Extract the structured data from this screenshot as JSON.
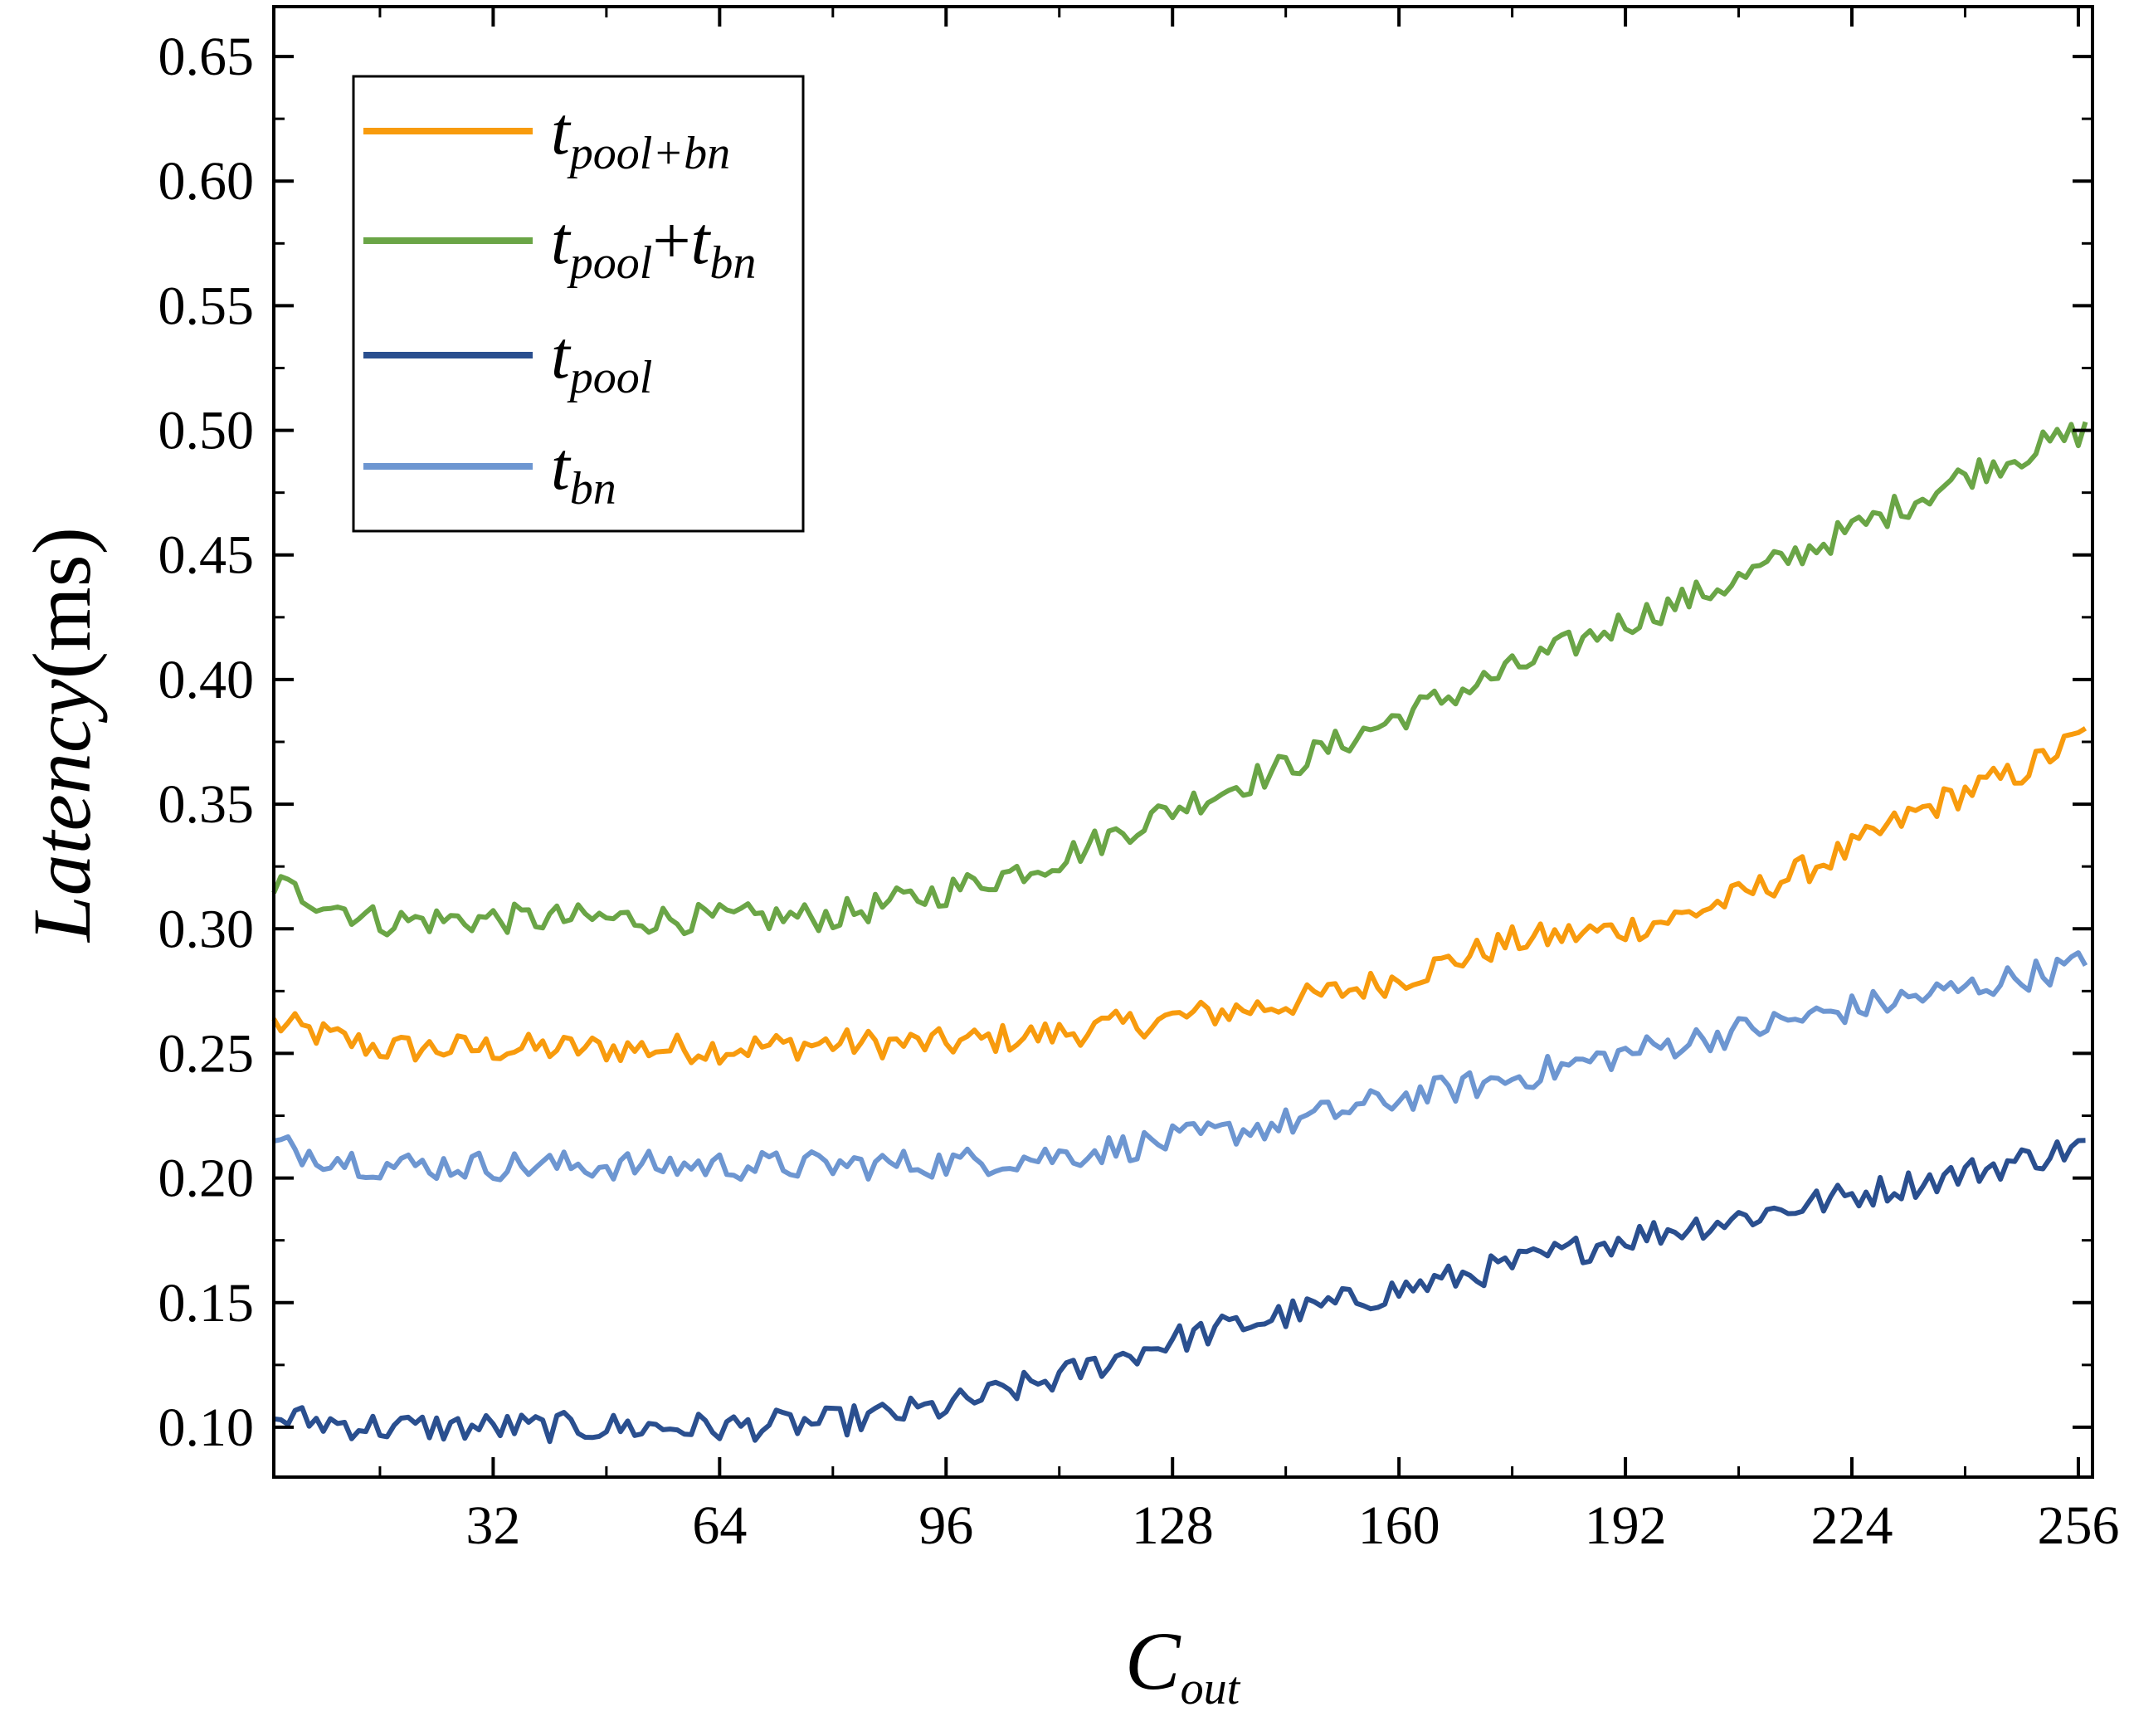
{
  "chart_data": {
    "type": "line",
    "xlabel": {
      "base": "C",
      "sub": "out"
    },
    "ylabel": {
      "italic": "Latency",
      "unit": "(ms)"
    },
    "xlim": [
      1,
      258
    ],
    "ylim": [
      0.08,
      0.67
    ],
    "xticks": [
      32,
      64,
      96,
      128,
      160,
      192,
      224,
      256
    ],
    "xtick_labels": [
      "32",
      "64",
      "96",
      "128",
      "160",
      "192",
      "224",
      "256"
    ],
    "yticks": [
      0.1,
      0.15,
      0.2,
      0.25,
      0.3,
      0.35,
      0.4,
      0.45,
      0.5,
      0.55,
      0.6,
      0.65
    ],
    "ytick_labels": [
      "0.10",
      "0.15",
      "0.20",
      "0.25",
      "0.30",
      "0.35",
      "0.40",
      "0.45",
      "0.50",
      "0.55",
      "0.60",
      "0.65"
    ],
    "legend_position": "top-left",
    "noise_amplitude": 0.006,
    "series": [
      {
        "name": "t_pool+bn",
        "label": {
          "base": "t",
          "sub": "pool+bn"
        },
        "color": "#F89B0D",
        "x": [
          1,
          16,
          32,
          48,
          64,
          80,
          96,
          112,
          128,
          144,
          160,
          176,
          192,
          200,
          208,
          216,
          224,
          232,
          240,
          248,
          257
        ],
        "y": [
          0.262,
          0.252,
          0.252,
          0.252,
          0.252,
          0.254,
          0.254,
          0.258,
          0.264,
          0.27,
          0.28,
          0.295,
          0.3,
          0.305,
          0.313,
          0.322,
          0.332,
          0.345,
          0.355,
          0.363,
          0.378
        ]
      },
      {
        "name": "t_pool+t_bn",
        "label": {
          "base": "t",
          "sub": "pool",
          "plus": "+",
          "base2": "t",
          "sub2": "bn"
        },
        "color": "#6AA546",
        "x": [
          1,
          16,
          32,
          48,
          64,
          80,
          96,
          112,
          128,
          144,
          160,
          176,
          192,
          208,
          224,
          240,
          257
        ],
        "y": [
          0.318,
          0.303,
          0.304,
          0.304,
          0.304,
          0.305,
          0.315,
          0.328,
          0.348,
          0.365,
          0.385,
          0.404,
          0.423,
          0.44,
          0.46,
          0.482,
          0.5
        ]
      },
      {
        "name": "t_pool",
        "label": {
          "base": "t",
          "sub": "pool"
        },
        "color": "#2A4F8F",
        "x": [
          1,
          16,
          32,
          48,
          64,
          80,
          96,
          112,
          128,
          144,
          160,
          176,
          192,
          208,
          224,
          240,
          257
        ],
        "y": [
          0.104,
          0.1,
          0.1,
          0.1,
          0.1,
          0.102,
          0.108,
          0.12,
          0.135,
          0.145,
          0.155,
          0.165,
          0.176,
          0.184,
          0.193,
          0.202,
          0.213
        ]
      },
      {
        "name": "t_bn",
        "label": {
          "base": "t",
          "sub": "bn"
        },
        "color": "#6D96D1",
        "x": [
          1,
          16,
          32,
          48,
          64,
          80,
          96,
          112,
          128,
          144,
          160,
          176,
          192,
          208,
          224,
          240,
          257
        ],
        "y": [
          0.213,
          0.205,
          0.205,
          0.205,
          0.205,
          0.205,
          0.206,
          0.209,
          0.215,
          0.222,
          0.232,
          0.24,
          0.25,
          0.259,
          0.268,
          0.276,
          0.286
        ]
      }
    ]
  }
}
